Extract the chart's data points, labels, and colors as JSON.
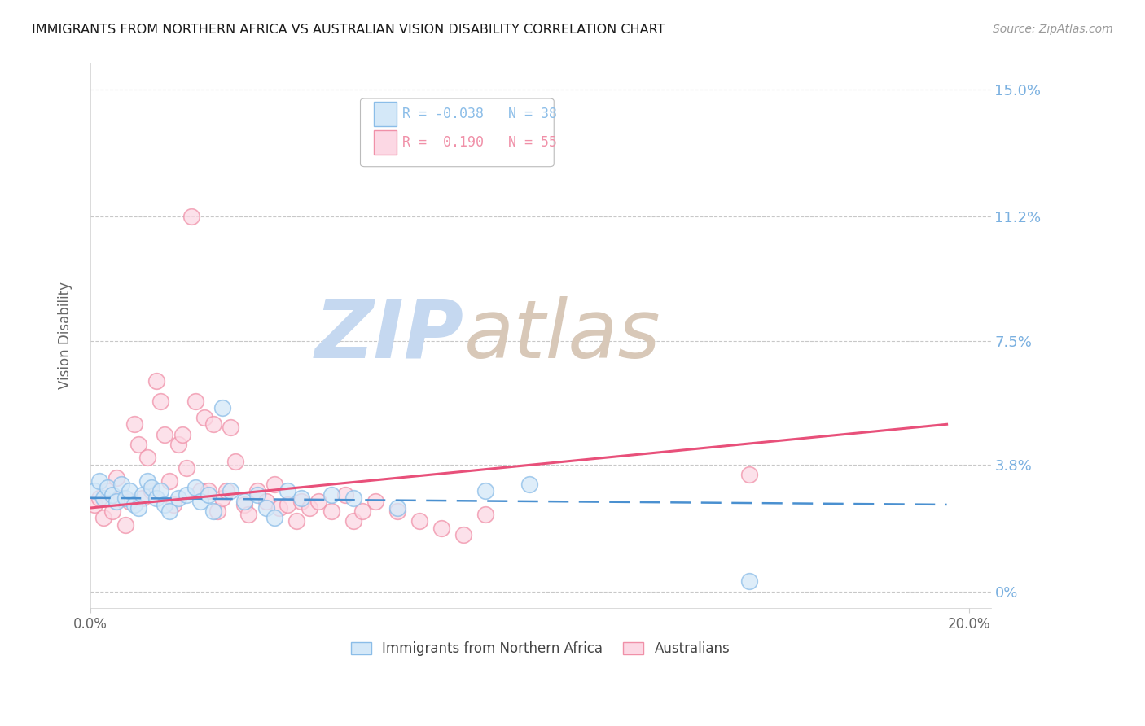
{
  "title": "IMMIGRANTS FROM NORTHERN AFRICA VS AUSTRALIAN VISION DISABILITY CORRELATION CHART",
  "source": "Source: ZipAtlas.com",
  "ylabel": "Vision Disability",
  "ytick_vals": [
    0.0,
    0.038,
    0.075,
    0.112,
    0.15
  ],
  "ytick_labels": [
    "0%",
    "3.8%",
    "7.5%",
    "11.2%",
    "15.0%"
  ],
  "xlim": [
    0.0,
    0.205
  ],
  "ylim": [
    -0.005,
    0.158
  ],
  "background_color": "#ffffff",
  "grid_color": "#c8c8c8",
  "watermark_zip": "ZIP",
  "watermark_atlas": "atlas",
  "watermark_color_zip": "#c5d8f0",
  "watermark_color_atlas": "#d8c8b8",
  "legend_R1": "-0.038",
  "legend_N1": "38",
  "legend_R2": "0.190",
  "legend_N2": "55",
  "legend_label1": "Immigrants from Northern Africa",
  "legend_label2": "Australians",
  "color_blue": "#8bbde8",
  "color_pink": "#f090a8",
  "trendline_blue_color": "#4a90d0",
  "trendline_pink_color": "#e8507a",
  "blue_scatter": [
    [
      0.001,
      0.03
    ],
    [
      0.002,
      0.033
    ],
    [
      0.003,
      0.028
    ],
    [
      0.004,
      0.031
    ],
    [
      0.005,
      0.029
    ],
    [
      0.006,
      0.027
    ],
    [
      0.007,
      0.032
    ],
    [
      0.008,
      0.028
    ],
    [
      0.009,
      0.03
    ],
    [
      0.01,
      0.026
    ],
    [
      0.011,
      0.025
    ],
    [
      0.012,
      0.029
    ],
    [
      0.013,
      0.033
    ],
    [
      0.014,
      0.031
    ],
    [
      0.015,
      0.028
    ],
    [
      0.016,
      0.03
    ],
    [
      0.017,
      0.026
    ],
    [
      0.018,
      0.024
    ],
    [
      0.02,
      0.028
    ],
    [
      0.022,
      0.029
    ],
    [
      0.024,
      0.031
    ],
    [
      0.025,
      0.027
    ],
    [
      0.027,
      0.029
    ],
    [
      0.028,
      0.024
    ],
    [
      0.03,
      0.055
    ],
    [
      0.032,
      0.03
    ],
    [
      0.035,
      0.027
    ],
    [
      0.038,
      0.029
    ],
    [
      0.04,
      0.025
    ],
    [
      0.042,
      0.022
    ],
    [
      0.045,
      0.03
    ],
    [
      0.048,
      0.028
    ],
    [
      0.055,
      0.029
    ],
    [
      0.06,
      0.028
    ],
    [
      0.07,
      0.025
    ],
    [
      0.09,
      0.03
    ],
    [
      0.1,
      0.032
    ],
    [
      0.15,
      0.003
    ]
  ],
  "pink_scatter": [
    [
      0.001,
      0.026
    ],
    [
      0.002,
      0.028
    ],
    [
      0.003,
      0.022
    ],
    [
      0.004,
      0.03
    ],
    [
      0.005,
      0.024
    ],
    [
      0.006,
      0.034
    ],
    [
      0.007,
      0.028
    ],
    [
      0.008,
      0.02
    ],
    [
      0.009,
      0.027
    ],
    [
      0.01,
      0.05
    ],
    [
      0.011,
      0.044
    ],
    [
      0.012,
      0.028
    ],
    [
      0.013,
      0.04
    ],
    [
      0.014,
      0.03
    ],
    [
      0.015,
      0.063
    ],
    [
      0.016,
      0.057
    ],
    [
      0.017,
      0.047
    ],
    [
      0.018,
      0.033
    ],
    [
      0.019,
      0.026
    ],
    [
      0.02,
      0.044
    ],
    [
      0.021,
      0.047
    ],
    [
      0.022,
      0.037
    ],
    [
      0.023,
      0.112
    ],
    [
      0.024,
      0.057
    ],
    [
      0.025,
      0.03
    ],
    [
      0.026,
      0.052
    ],
    [
      0.027,
      0.03
    ],
    [
      0.028,
      0.05
    ],
    [
      0.029,
      0.024
    ],
    [
      0.03,
      0.028
    ],
    [
      0.031,
      0.03
    ],
    [
      0.032,
      0.049
    ],
    [
      0.033,
      0.039
    ],
    [
      0.035,
      0.026
    ],
    [
      0.036,
      0.023
    ],
    [
      0.038,
      0.03
    ],
    [
      0.04,
      0.027
    ],
    [
      0.042,
      0.032
    ],
    [
      0.043,
      0.025
    ],
    [
      0.045,
      0.026
    ],
    [
      0.047,
      0.021
    ],
    [
      0.048,
      0.027
    ],
    [
      0.05,
      0.025
    ],
    [
      0.052,
      0.027
    ],
    [
      0.055,
      0.024
    ],
    [
      0.058,
      0.029
    ],
    [
      0.06,
      0.021
    ],
    [
      0.062,
      0.024
    ],
    [
      0.065,
      0.027
    ],
    [
      0.07,
      0.024
    ],
    [
      0.075,
      0.021
    ],
    [
      0.08,
      0.019
    ],
    [
      0.085,
      0.017
    ],
    [
      0.09,
      0.023
    ],
    [
      0.15,
      0.035
    ]
  ],
  "blue_trendline_x": [
    0.0,
    0.195
  ],
  "blue_trendline_y": [
    0.028,
    0.026
  ],
  "pink_trendline_x": [
    0.0,
    0.195
  ],
  "pink_trendline_y": [
    0.025,
    0.05
  ]
}
